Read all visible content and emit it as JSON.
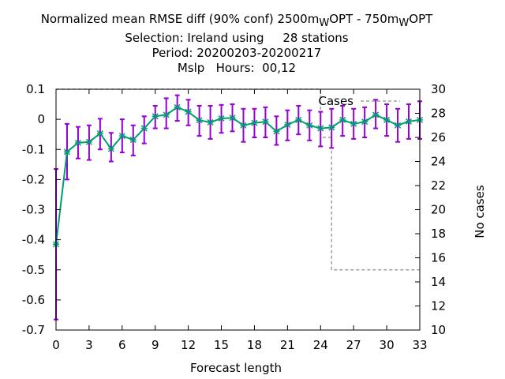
{
  "title_lines": [
    "Normalized mean RMSE diff (90% conf) 2500m",
    "Selection: Ireland using     28 stations",
    "Period: 20200203-20200217",
    "Mslp   Hours:  00,12"
  ],
  "title_parts": {
    "exp1": "2500m",
    "sub1": "W",
    "mid": "OPT - 750m",
    "sub2": "W",
    "end": "OPT"
  },
  "colors": {
    "series": "#009e73",
    "errorbar": "#9400d3",
    "cases": "#a0a0a0",
    "axis": "#000000"
  },
  "chart_data": {
    "type": "line",
    "xlabel": "Forecast length",
    "ylabel": "",
    "y2label": "No cases",
    "xlim": [
      0,
      33
    ],
    "ylim": [
      -0.7,
      0.1
    ],
    "y2lim": [
      10,
      30
    ],
    "xticks": [
      0,
      3,
      6,
      9,
      12,
      15,
      18,
      21,
      24,
      27,
      30,
      33
    ],
    "yticks": [
      0.1,
      0,
      -0.1,
      -0.2,
      -0.3,
      -0.4,
      -0.5,
      -0.6,
      -0.7
    ],
    "ytick_labels": [
      "0.1",
      "0",
      "-0.1",
      "-0.2",
      "-0.3",
      "-0.4",
      "-0.5",
      "-0.6",
      "-0.7"
    ],
    "y2ticks": [
      30,
      28,
      26,
      24,
      22,
      20,
      18,
      16,
      14,
      12,
      10
    ],
    "grid": false,
    "series": [
      {
        "name": "",
        "x": [
          0,
          1,
          2,
          3,
          4,
          5,
          6,
          7,
          8,
          9,
          10,
          11,
          12,
          13,
          14,
          15,
          16,
          17,
          18,
          19,
          20,
          21,
          22,
          23,
          24,
          25,
          26,
          27,
          28,
          29,
          30,
          31,
          32,
          33
        ],
        "y": [
          -0.415,
          -0.108,
          -0.078,
          -0.075,
          -0.047,
          -0.098,
          -0.055,
          -0.068,
          -0.03,
          0.01,
          0.015,
          0.04,
          0.025,
          -0.003,
          -0.01,
          0.003,
          0.005,
          -0.02,
          -0.012,
          -0.008,
          -0.04,
          -0.018,
          -0.002,
          -0.02,
          -0.03,
          -0.027,
          -0.002,
          -0.015,
          -0.008,
          0.015,
          -0.002,
          -0.02,
          -0.007,
          -0.002
        ],
        "err_low": [
          -0.665,
          -0.2,
          -0.13,
          -0.135,
          -0.1,
          -0.14,
          -0.11,
          -0.12,
          -0.08,
          -0.03,
          -0.03,
          -0.005,
          -0.02,
          -0.055,
          -0.065,
          -0.045,
          -0.04,
          -0.075,
          -0.06,
          -0.06,
          -0.085,
          -0.07,
          -0.05,
          -0.07,
          -0.09,
          -0.095,
          -0.055,
          -0.065,
          -0.06,
          -0.03,
          -0.055,
          -0.075,
          -0.065,
          -0.065
        ],
        "err_high": [
          -0.165,
          -0.015,
          -0.025,
          -0.02,
          0.002,
          -0.045,
          0.0,
          -0.02,
          0.01,
          0.045,
          0.07,
          0.08,
          0.065,
          0.045,
          0.045,
          0.048,
          0.05,
          0.035,
          0.035,
          0.04,
          0.01,
          0.03,
          0.045,
          0.03,
          0.025,
          0.035,
          0.045,
          0.035,
          0.04,
          0.065,
          0.05,
          0.035,
          0.05,
          0.06
        ]
      },
      {
        "name": "Cases",
        "axis": "y2",
        "x": [
          0,
          1,
          2,
          3,
          4,
          5,
          6,
          7,
          8,
          9,
          10,
          11,
          12,
          13,
          14,
          15,
          16,
          17,
          18,
          19,
          20,
          21,
          22,
          23,
          24,
          25,
          26,
          27,
          28,
          29,
          30,
          31,
          32,
          33
        ],
        "y": [
          30,
          30,
          30,
          30,
          30,
          30,
          30,
          30,
          30,
          30,
          30,
          30,
          30,
          30,
          30,
          30,
          30,
          30,
          30,
          30,
          30,
          30,
          30,
          30,
          26,
          15,
          15,
          15,
          15,
          15,
          15,
          15,
          15,
          15
        ]
      }
    ],
    "legend": {
      "label": "Cases",
      "position": "top-right"
    }
  }
}
